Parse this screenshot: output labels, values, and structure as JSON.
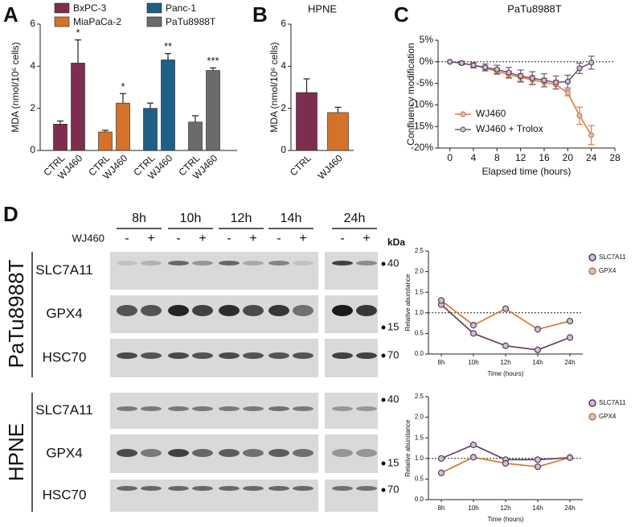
{
  "panel_labels": [
    "A",
    "B",
    "C",
    "D"
  ],
  "chart_data": [
    {
      "type": "bar",
      "categories": [
        "CTRL",
        "WJ460"
      ],
      "y_label": "MDA (nmol/10⁶ cells)",
      "ylim": [
        0,
        6
      ],
      "yticks": [
        0,
        2,
        4,
        6
      ],
      "series": [
        {
          "name": "BxPC-3",
          "color": "#7d2e4e",
          "values": [
            1.25,
            4.15
          ],
          "errors": [
            0.15,
            1.1
          ],
          "significance": "*"
        },
        {
          "name": "MiaPaCa-2",
          "color": "#d4722a",
          "values": [
            0.88,
            2.25
          ],
          "errors": [
            0.08,
            0.45
          ],
          "significance": "*"
        },
        {
          "name": "Panc-1",
          "color": "#1f5f85",
          "values": [
            2.0,
            4.3
          ],
          "errors": [
            0.25,
            0.3
          ],
          "significance": "**"
        },
        {
          "name": "PaTu8988T",
          "color": "#6b6b6b",
          "values": [
            1.35,
            3.8
          ],
          "errors": [
            0.3,
            0.12
          ],
          "significance": "***"
        }
      ]
    },
    {
      "type": "bar",
      "title": "HPNE",
      "categories": [
        "CTRL",
        "WJ460"
      ],
      "values": [
        2.75,
        1.8
      ],
      "errors": [
        0.65,
        0.25
      ],
      "colors": [
        "#7d2e4e",
        "#d4722a"
      ],
      "y_label": "MDA (nmol/10⁶ cells)",
      "ylim": [
        0,
        6
      ],
      "yticks": [
        0,
        2,
        4,
        6
      ]
    },
    {
      "type": "line",
      "title": "PaTu8988T",
      "x_label": "Elapsed time (hours)",
      "y_label": "Confluency modification",
      "x": [
        0,
        2,
        4,
        6,
        8,
        10,
        12,
        14,
        16,
        18,
        20,
        22,
        24
      ],
      "xlim": [
        -2,
        28
      ],
      "xticks": [
        0,
        4,
        8,
        12,
        16,
        20,
        24,
        28
      ],
      "ylim": [
        -20,
        5
      ],
      "yticks": [
        {
          "value": 5,
          "label": "5%"
        },
        {
          "value": 0,
          "label": "0%"
        },
        {
          "value": -5,
          "label": "-5%"
        },
        {
          "value": -10,
          "label": "-10%"
        },
        {
          "value": -15,
          "label": "-15%"
        },
        {
          "value": -20,
          "label": "-20%"
        }
      ],
      "reference_line": 0,
      "series": [
        {
          "name": "WJ460",
          "color": "#e07b39",
          "values": [
            0,
            -0.3,
            -0.8,
            -1.5,
            -2.2,
            -3,
            -3.6,
            -4.2,
            -4.8,
            -5.3,
            -7.2,
            -12.5,
            -17
          ],
          "errors": [
            0,
            0.3,
            0.5,
            0.6,
            0.7,
            0.8,
            0.9,
            1,
            1,
            1,
            0.7,
            2,
            2.2
          ]
        },
        {
          "name": "WJ460 + Trolox",
          "color": "#6e5a7a",
          "values": [
            0,
            -0.3,
            -0.8,
            -1.3,
            -1.8,
            -2.5,
            -3.3,
            -3.8,
            -4.3,
            -4.8,
            -4.6,
            -1.5,
            -0.2
          ],
          "errors": [
            0,
            0.4,
            0.6,
            0.8,
            1,
            1.2,
            1.4,
            1.5,
            1.5,
            1.5,
            1.5,
            1.2,
            1.5
          ]
        }
      ]
    },
    {
      "type": "line",
      "categories": [
        "8h",
        "10h",
        "12h",
        "14h",
        "24h"
      ],
      "x_label": "Time (hours)",
      "y_label": "Relative abundance",
      "ylim": [
        0,
        2.5
      ],
      "yticks": [
        {
          "value": 0,
          "label": "0.0"
        },
        {
          "value": 0.5,
          "label": "0.5"
        },
        {
          "value": 1,
          "label": "1.0"
        },
        {
          "value": 1.5,
          "label": "1.5"
        },
        {
          "value": 2,
          "label": "2.0"
        },
        {
          "value": 2.5,
          "label": "2.5"
        }
      ],
      "reference_line": 1,
      "series": [
        {
          "name": "SLC7A11",
          "color": "#5a3a5a",
          "values": [
            1.2,
            0.5,
            0.2,
            0.1,
            0.4
          ]
        },
        {
          "name": "GPX4",
          "color": "#d4722a",
          "values": [
            1.3,
            0.7,
            1.1,
            0.6,
            0.8
          ]
        }
      ]
    },
    {
      "type": "line",
      "categories": [
        "8h",
        "10h",
        "12h",
        "14h",
        "24h"
      ],
      "x_label": "Time (hours)",
      "y_label": "Relative abundance",
      "ylim": [
        0,
        2.5
      ],
      "yticks": [
        {
          "value": 0,
          "label": "0.0"
        },
        {
          "value": 0.5,
          "label": "0.5"
        },
        {
          "value": 1,
          "label": "1.0"
        },
        {
          "value": 1.5,
          "label": "1.5"
        },
        {
          "value": 2,
          "label": "2.0"
        },
        {
          "value": 2.5,
          "label": "2.5"
        }
      ],
      "reference_line": 1,
      "series": [
        {
          "name": "SLC7A11",
          "color": "#5a3a5a",
          "values": [
            1.0,
            1.33,
            0.97,
            0.97,
            1.02
          ]
        },
        {
          "name": "GPX4",
          "color": "#d4722a",
          "values": [
            0.65,
            1.03,
            0.88,
            0.8,
            1.02
          ]
        }
      ]
    }
  ],
  "blot": {
    "timepoints": [
      "8h",
      "10h",
      "12h",
      "14h",
      "24h"
    ],
    "treatment": "WJ460",
    "signs": [
      "-",
      "+"
    ],
    "kda_label": "kDa",
    "cell_lines": [
      {
        "name": "PaTu8988T",
        "rows": [
          {
            "protein": "SLC7A11",
            "kda": 40
          },
          {
            "protein": "GPX4",
            "kda": 15
          },
          {
            "protein": "HSC70",
            "kda": 70
          }
        ]
      },
      {
        "name": "HPNE",
        "rows": [
          {
            "protein": "SLC7A11",
            "kda": 40
          },
          {
            "protein": "GPX4",
            "kda": 15
          },
          {
            "protein": "HSC70",
            "kda": 70
          }
        ]
      }
    ]
  }
}
